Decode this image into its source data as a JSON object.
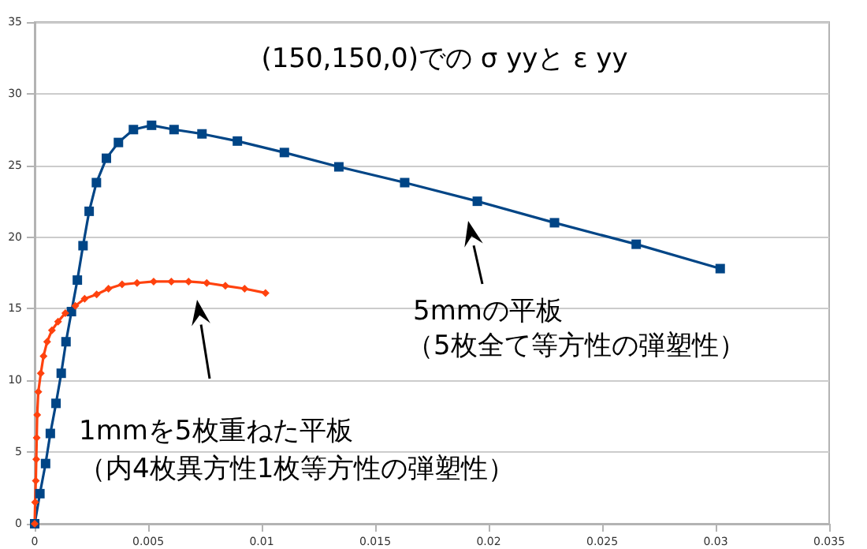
{
  "chart_data": {
    "type": "line",
    "title": "(150,150,0)での σ yyと ε yy",
    "xlim": [
      0,
      0.035
    ],
    "xticks": [
      0,
      0.005,
      0.01,
      0.015,
      0.02,
      0.025,
      0.03,
      0.035
    ],
    "ylim": [
      0,
      35
    ],
    "yticks": [
      0,
      5,
      10,
      15,
      20,
      25,
      30,
      35
    ],
    "grid": "y",
    "line_style": "solid",
    "series": [
      {
        "color": "#004586",
        "marker": "square",
        "x": [
          0,
          0.00023,
          0.00048,
          0.00069,
          0.00094,
          0.00117,
          0.00138,
          0.00162,
          0.00188,
          0.00213,
          0.0024,
          0.00272,
          0.00316,
          0.00369,
          0.00435,
          0.00515,
          0.00614,
          0.00737,
          0.00893,
          0.011,
          0.0134,
          0.0163,
          0.0195,
          0.0229,
          0.0265,
          0.0302
        ],
        "values": [
          0,
          2.1,
          4.2,
          6.3,
          8.4,
          10.5,
          12.7,
          14.8,
          17.0,
          19.4,
          21.8,
          23.8,
          25.5,
          26.6,
          27.5,
          27.8,
          27.5,
          27.2,
          26.7,
          25.9,
          24.9,
          23.8,
          22.5,
          21.0,
          19.5,
          17.8
        ]
      },
      {
        "color": "#ff420e",
        "marker": "diamond",
        "x": [
          0,
          2e-05,
          5e-05,
          7e-05,
          9e-05,
          0.00011,
          0.00016,
          0.00027,
          0.00039,
          0.00055,
          0.00076,
          0.00103,
          0.00135,
          0.00179,
          0.0022,
          0.00273,
          0.00325,
          0.00385,
          0.00451,
          0.00524,
          0.00602,
          0.00678,
          0.00758,
          0.0084,
          0.00925,
          0.01017
        ],
        "values": [
          0,
          1.5,
          3.0,
          4.5,
          6.0,
          7.6,
          9.2,
          10.5,
          11.7,
          12.7,
          13.5,
          14.1,
          14.7,
          15.2,
          15.7,
          16.0,
          16.4,
          16.7,
          16.8,
          16.9,
          16.9,
          16.9,
          16.8,
          16.6,
          16.4,
          16.1
        ]
      }
    ],
    "annotations": [
      "1mmを5枚重ねた平板",
      "（内4枚異方性1枚等方性の弾塑性）",
      "5mmの平板",
      "（5枚全て等方性の弾塑性）"
    ]
  }
}
